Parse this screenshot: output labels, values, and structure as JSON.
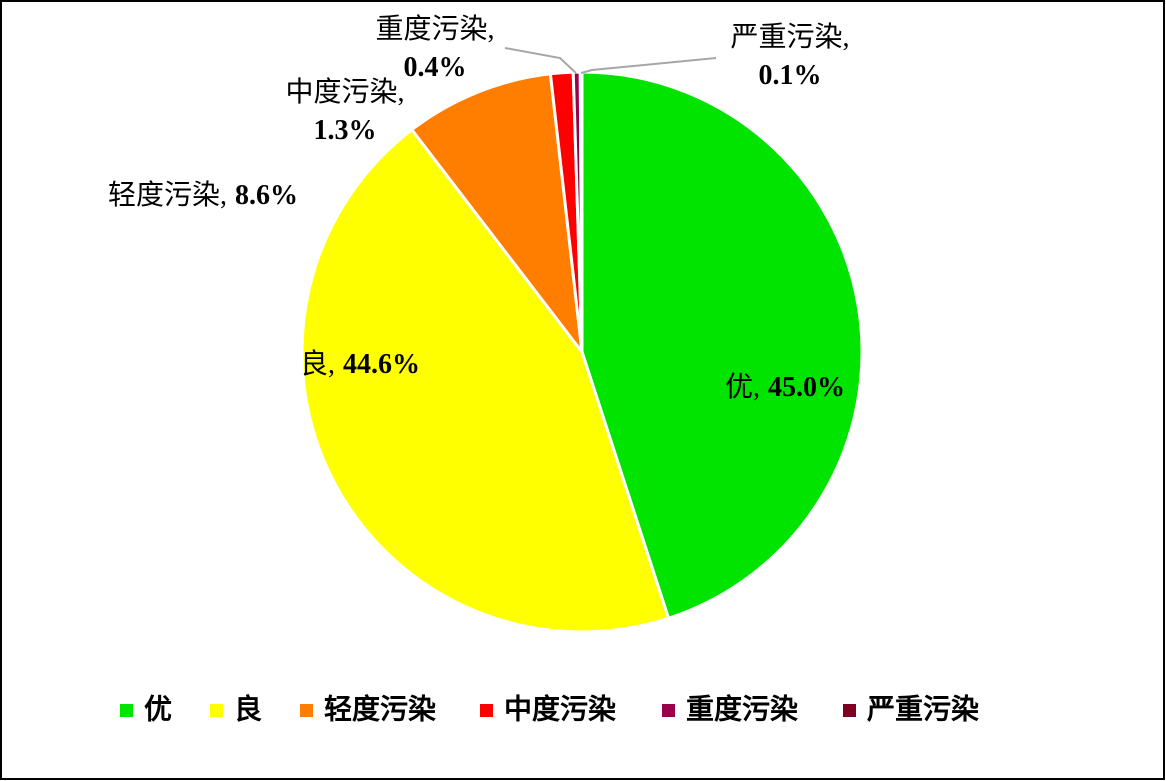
{
  "chart_data": {
    "type": "pie",
    "categories": [
      "优",
      "良",
      "轻度污染",
      "中度污染",
      "重度污染",
      "严重污染"
    ],
    "values": [
      45.0,
      44.6,
      8.6,
      1.3,
      0.4,
      0.1
    ],
    "value_labels": [
      "45.0%",
      "44.6%",
      "8.6%",
      "1.3%",
      "0.4%",
      "0.1%"
    ],
    "label_separator": ",",
    "colors": [
      "#00e400",
      "#ffff00",
      "#ff7e00",
      "#ff0000",
      "#99004c",
      "#7e0023"
    ],
    "legend": "bottom"
  }
}
